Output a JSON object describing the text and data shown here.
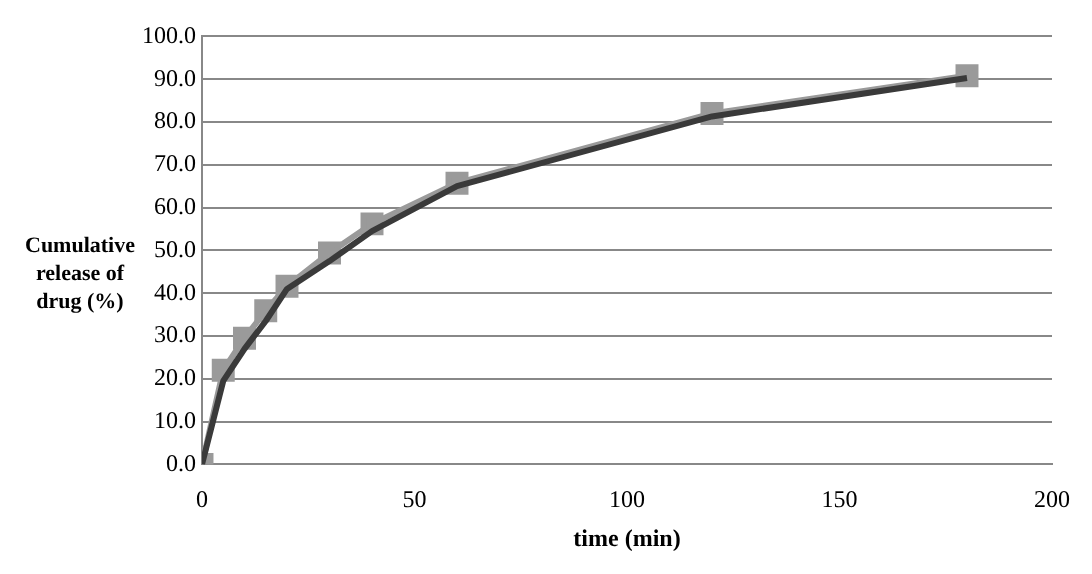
{
  "chart_data": {
    "type": "line",
    "xlabel": "time (min)",
    "ylabel": "Cumulative release of drug (%)",
    "x": [
      0,
      5,
      10,
      15,
      20,
      30,
      40,
      60,
      120,
      180
    ],
    "series": [
      {
        "color": "#3a3a3a",
        "marker": "none",
        "values": [
          0,
          19.5,
          27.0,
          33.5,
          41.0,
          47.5,
          54.5,
          65.0,
          81.3,
          90.3
        ]
      },
      {
        "color": "#9a9a9a",
        "marker": "square",
        "values": [
          0,
          22.0,
          29.5,
          35.9,
          41.6,
          49.4,
          56.2,
          65.7,
          82.0,
          90.8
        ]
      }
    ],
    "xlim": [
      0,
      200
    ],
    "xticks": [
      0,
      50,
      100,
      150,
      200
    ],
    "ylim": [
      0,
      100
    ],
    "yticks": [
      {
        "value": 0,
        "label": "0.0"
      },
      {
        "value": 10,
        "label": "10.0"
      },
      {
        "value": 20,
        "label": "20.0"
      },
      {
        "value": 30,
        "label": "30.0"
      },
      {
        "value": 40,
        "label": "40.0"
      },
      {
        "value": 50,
        "label": "50.0"
      },
      {
        "value": 60,
        "label": "60.0"
      },
      {
        "value": 70,
        "label": "70.0"
      },
      {
        "value": 80,
        "label": "80.0"
      },
      {
        "value": 90,
        "label": "90.0"
      },
      {
        "value": 100,
        "label": "100.0"
      }
    ],
    "grid": "y",
    "legend": false
  }
}
